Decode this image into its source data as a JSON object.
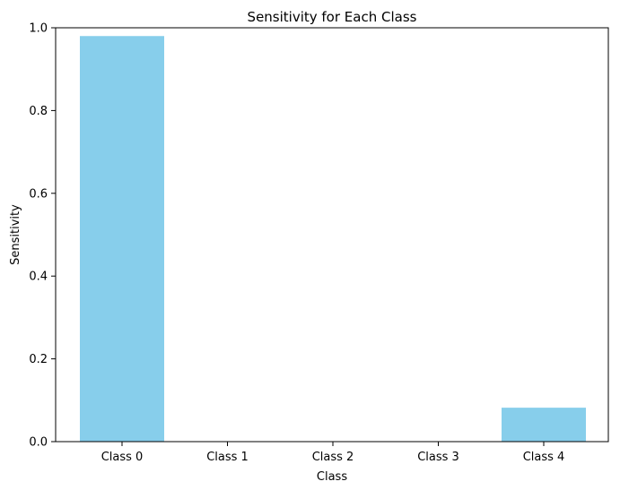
{
  "chart_data": {
    "type": "bar",
    "title": "Sensitivity for Each Class",
    "xlabel": "Class",
    "ylabel": "Sensitivity",
    "categories": [
      "Class 0",
      "Class 1",
      "Class 2",
      "Class 3",
      "Class 4"
    ],
    "values": [
      0.98,
      0.0,
      0.0,
      0.0,
      0.082
    ],
    "ylim": [
      0,
      1.0
    ],
    "yticks": [
      "0.0",
      "0.2",
      "0.4",
      "0.6",
      "0.8",
      "1.0"
    ],
    "bar_color": "#87ceeb",
    "grid": false,
    "legend": "none"
  }
}
